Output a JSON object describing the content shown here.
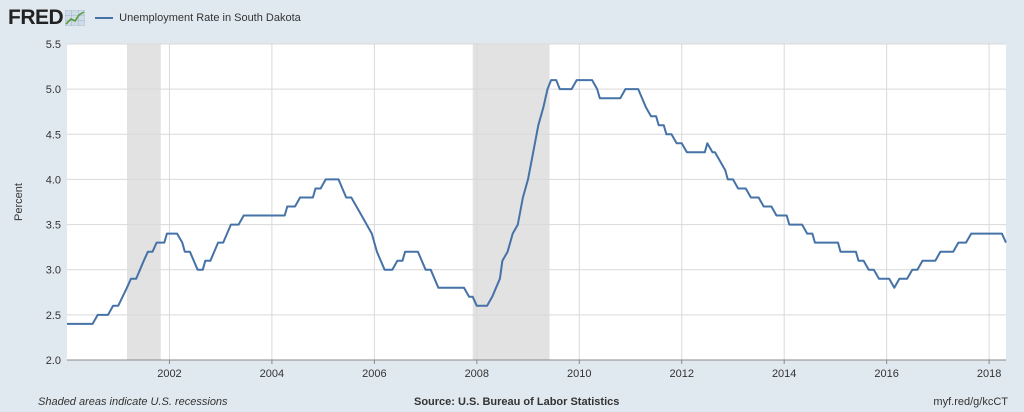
{
  "header": {
    "logo_text": "FRED",
    "legend_label": "Unemployment Rate in South Dakota",
    "series_color": "#4572a7"
  },
  "footer": {
    "note": "Shaded areas indicate U.S. recessions",
    "source": "Source: U.S. Bureau of Labor Statistics",
    "link": "myf.red/g/kcCT"
  },
  "chart_data": {
    "type": "line",
    "ylabel": "Percent",
    "ylim": [
      2.0,
      5.5
    ],
    "xlim": [
      2000.0,
      2018.33
    ],
    "yticks": [
      "2.0",
      "2.5",
      "3.0",
      "3.5",
      "4.0",
      "4.5",
      "5.0",
      "5.5"
    ],
    "xticks": [
      "2002",
      "2004",
      "2006",
      "2008",
      "2010",
      "2012",
      "2014",
      "2016",
      "2018"
    ],
    "grid": true,
    "legend_position": "top-left",
    "recessions": [
      [
        2001.17,
        2001.83
      ],
      [
        2007.92,
        2009.42
      ]
    ],
    "series": [
      {
        "name": "Unemployment Rate in South Dakota",
        "color": "#4572a7",
        "points": [
          [
            2000.0,
            2.4
          ],
          [
            2000.5,
            2.4
          ],
          [
            2000.6,
            2.5
          ],
          [
            2000.8,
            2.5
          ],
          [
            2000.9,
            2.6
          ],
          [
            2001.0,
            2.6
          ],
          [
            2001.17,
            2.8
          ],
          [
            2001.25,
            2.9
          ],
          [
            2001.35,
            2.9
          ],
          [
            2001.5,
            3.1
          ],
          [
            2001.58,
            3.2
          ],
          [
            2001.67,
            3.2
          ],
          [
            2001.75,
            3.3
          ],
          [
            2001.9,
            3.3
          ],
          [
            2001.95,
            3.4
          ],
          [
            2002.15,
            3.4
          ],
          [
            2002.25,
            3.3
          ],
          [
            2002.3,
            3.2
          ],
          [
            2002.4,
            3.2
          ],
          [
            2002.55,
            3.0
          ],
          [
            2002.65,
            3.0
          ],
          [
            2002.7,
            3.1
          ],
          [
            2002.8,
            3.1
          ],
          [
            2002.95,
            3.3
          ],
          [
            2003.05,
            3.3
          ],
          [
            2003.2,
            3.5
          ],
          [
            2003.35,
            3.5
          ],
          [
            2003.45,
            3.6
          ],
          [
            2004.25,
            3.6
          ],
          [
            2004.3,
            3.7
          ],
          [
            2004.45,
            3.7
          ],
          [
            2004.55,
            3.8
          ],
          [
            2004.8,
            3.8
          ],
          [
            2004.85,
            3.9
          ],
          [
            2004.95,
            3.9
          ],
          [
            2005.05,
            4.0
          ],
          [
            2005.3,
            4.0
          ],
          [
            2005.45,
            3.8
          ],
          [
            2005.55,
            3.8
          ],
          [
            2005.75,
            3.6
          ],
          [
            2005.95,
            3.4
          ],
          [
            2006.05,
            3.2
          ],
          [
            2006.2,
            3.0
          ],
          [
            2006.35,
            3.0
          ],
          [
            2006.45,
            3.1
          ],
          [
            2006.55,
            3.1
          ],
          [
            2006.6,
            3.2
          ],
          [
            2006.85,
            3.2
          ],
          [
            2007.0,
            3.0
          ],
          [
            2007.1,
            3.0
          ],
          [
            2007.25,
            2.8
          ],
          [
            2007.75,
            2.8
          ],
          [
            2007.85,
            2.7
          ],
          [
            2007.92,
            2.7
          ],
          [
            2008.0,
            2.6
          ],
          [
            2008.2,
            2.6
          ],
          [
            2008.3,
            2.7
          ],
          [
            2008.45,
            2.9
          ],
          [
            2008.5,
            3.1
          ],
          [
            2008.6,
            3.2
          ],
          [
            2008.7,
            3.4
          ],
          [
            2008.8,
            3.5
          ],
          [
            2008.9,
            3.8
          ],
          [
            2009.0,
            4.0
          ],
          [
            2009.1,
            4.3
          ],
          [
            2009.2,
            4.6
          ],
          [
            2009.3,
            4.8
          ],
          [
            2009.38,
            5.0
          ],
          [
            2009.45,
            5.1
          ],
          [
            2009.55,
            5.1
          ],
          [
            2009.62,
            5.0
          ],
          [
            2009.85,
            5.0
          ],
          [
            2009.95,
            5.1
          ],
          [
            2010.25,
            5.1
          ],
          [
            2010.35,
            5.0
          ],
          [
            2010.4,
            4.9
          ],
          [
            2010.8,
            4.9
          ],
          [
            2010.9,
            5.0
          ],
          [
            2011.15,
            5.0
          ],
          [
            2011.3,
            4.8
          ],
          [
            2011.4,
            4.7
          ],
          [
            2011.5,
            4.7
          ],
          [
            2011.55,
            4.6
          ],
          [
            2011.65,
            4.6
          ],
          [
            2011.7,
            4.5
          ],
          [
            2011.8,
            4.5
          ],
          [
            2011.9,
            4.4
          ],
          [
            2012.0,
            4.4
          ],
          [
            2012.1,
            4.3
          ],
          [
            2012.45,
            4.3
          ],
          [
            2012.5,
            4.4
          ],
          [
            2012.6,
            4.3
          ],
          [
            2012.65,
            4.3
          ],
          [
            2012.75,
            4.2
          ],
          [
            2012.85,
            4.1
          ],
          [
            2012.9,
            4.0
          ],
          [
            2013.0,
            4.0
          ],
          [
            2013.1,
            3.9
          ],
          [
            2013.25,
            3.9
          ],
          [
            2013.35,
            3.8
          ],
          [
            2013.5,
            3.8
          ],
          [
            2013.6,
            3.7
          ],
          [
            2013.75,
            3.7
          ],
          [
            2013.85,
            3.6
          ],
          [
            2014.05,
            3.6
          ],
          [
            2014.1,
            3.5
          ],
          [
            2014.35,
            3.5
          ],
          [
            2014.45,
            3.4
          ],
          [
            2014.55,
            3.4
          ],
          [
            2014.6,
            3.3
          ],
          [
            2015.05,
            3.3
          ],
          [
            2015.1,
            3.2
          ],
          [
            2015.4,
            3.2
          ],
          [
            2015.45,
            3.1
          ],
          [
            2015.55,
            3.1
          ],
          [
            2015.65,
            3.0
          ],
          [
            2015.75,
            3.0
          ],
          [
            2015.85,
            2.9
          ],
          [
            2016.05,
            2.9
          ],
          [
            2016.15,
            2.8
          ],
          [
            2016.25,
            2.9
          ],
          [
            2016.4,
            2.9
          ],
          [
            2016.5,
            3.0
          ],
          [
            2016.6,
            3.0
          ],
          [
            2016.7,
            3.1
          ],
          [
            2016.95,
            3.1
          ],
          [
            2017.05,
            3.2
          ],
          [
            2017.3,
            3.2
          ],
          [
            2017.4,
            3.3
          ],
          [
            2017.55,
            3.3
          ],
          [
            2017.65,
            3.4
          ],
          [
            2018.25,
            3.4
          ],
          [
            2018.33,
            3.3
          ]
        ]
      }
    ]
  }
}
